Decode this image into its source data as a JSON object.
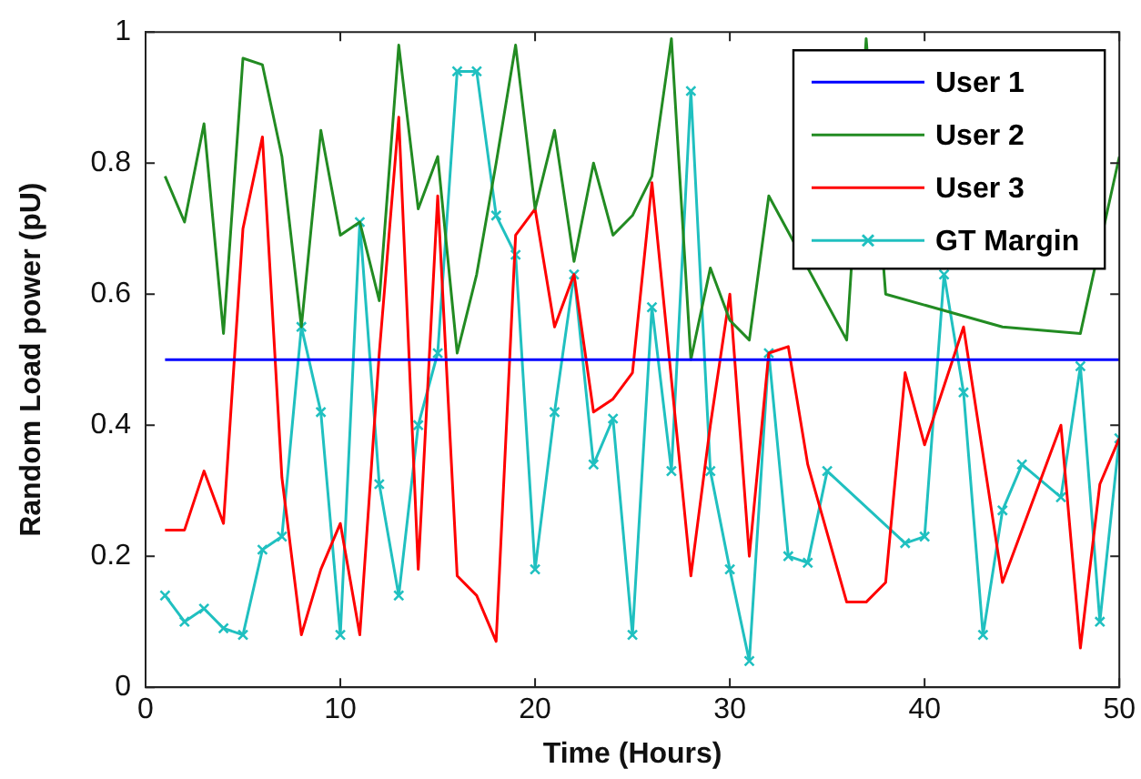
{
  "chart_data": {
    "type": "line",
    "xlabel": "Time (Hours)",
    "ylabel": "Random Load power (pU)",
    "x": [
      1,
      2,
      3,
      4,
      5,
      6,
      7,
      8,
      9,
      10,
      11,
      12,
      13,
      14,
      15,
      16,
      17,
      18,
      19,
      20,
      21,
      22,
      23,
      24,
      25,
      26,
      27,
      28,
      29,
      30,
      31,
      32,
      33,
      34,
      35,
      36,
      37,
      38,
      39,
      40,
      41,
      42,
      43,
      44,
      45,
      46,
      47,
      48,
      49,
      50
    ],
    "xlim": [
      0,
      50
    ],
    "xticks": [
      0,
      10,
      20,
      30,
      40,
      50
    ],
    "ylim": [
      0,
      1
    ],
    "yticks": [
      0,
      0.2,
      0.4,
      0.6,
      0.8,
      1
    ],
    "grid": false,
    "legend": "top right",
    "marker": "none",
    "line_style": "solid",
    "series": [
      {
        "name": "User 1",
        "color": "#0000ff",
        "values": [
          0.5,
          0.5,
          0.5,
          0.5,
          0.5,
          0.5,
          0.5,
          0.5,
          0.5,
          0.5,
          0.5,
          0.5,
          0.5,
          0.5,
          0.5,
          0.5,
          0.5,
          0.5,
          0.5,
          0.5,
          0.5,
          0.5,
          0.5,
          0.5,
          0.5,
          0.5,
          0.5,
          0.5,
          0.5,
          0.5,
          0.5,
          0.5,
          0.5,
          0.5,
          0.5,
          0.5,
          0.5,
          0.5,
          0.5,
          0.5,
          0.5,
          0.5,
          0.5,
          0.5,
          0.5,
          0.5,
          0.5,
          0.5,
          0.5,
          0.5
        ]
      },
      {
        "name": "User 2",
        "color": "#228b22",
        "values": [
          0.78,
          0.71,
          0.86,
          0.54,
          0.96,
          0.95,
          0.81,
          0.55,
          0.85,
          0.69,
          0.71,
          0.59,
          0.98,
          0.73,
          0.81,
          0.51,
          0.63,
          0.8,
          0.98,
          0.73,
          0.85,
          0.65,
          0.8,
          0.69,
          0.72,
          0.78,
          0.99,
          0.5,
          0.64,
          0.56,
          0.53,
          0.75,
          null,
          null,
          null,
          0.53,
          0.99,
          0.6,
          null,
          null,
          null,
          null,
          null,
          0.55,
          null,
          null,
          null,
          0.54,
          null,
          0.81
        ]
      },
      {
        "name": "User 3",
        "color": "#ff0000",
        "values": [
          0.24,
          0.24,
          0.33,
          0.25,
          0.7,
          0.84,
          0.32,
          0.08,
          0.18,
          0.25,
          0.08,
          0.51,
          0.87,
          0.18,
          0.75,
          0.17,
          0.14,
          0.07,
          0.69,
          0.73,
          0.55,
          0.63,
          0.42,
          0.44,
          0.48,
          0.77,
          0.47,
          0.17,
          0.4,
          0.6,
          0.2,
          0.51,
          0.52,
          0.34,
          null,
          0.13,
          0.13,
          0.16,
          0.48,
          0.37,
          null,
          0.55,
          null,
          0.16,
          null,
          null,
          0.4,
          0.06,
          0.31,
          0.38
        ]
      },
      {
        "name": "GT Margin",
        "color": "#20c0c0",
        "marker": "cross",
        "values": [
          0.14,
          0.1,
          0.12,
          0.09,
          0.08,
          0.21,
          0.23,
          0.55,
          0.42,
          0.08,
          0.71,
          0.31,
          0.14,
          0.4,
          0.51,
          0.94,
          0.94,
          0.72,
          0.66,
          0.18,
          0.42,
          0.63,
          0.34,
          0.41,
          0.08,
          0.58,
          0.33,
          0.91,
          0.33,
          0.18,
          0.04,
          0.51,
          0.2,
          0.19,
          0.33,
          null,
          null,
          null,
          0.22,
          0.23,
          0.63,
          0.45,
          0.08,
          0.27,
          0.34,
          null,
          0.29,
          0.49,
          0.1,
          0.38
        ]
      }
    ]
  }
}
